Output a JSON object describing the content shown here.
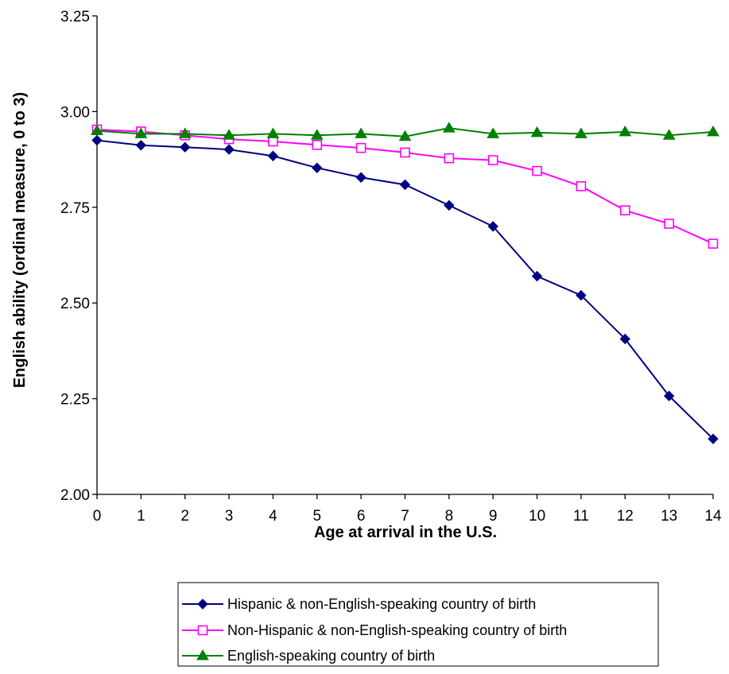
{
  "chart_data": {
    "type": "line",
    "title": "",
    "xlabel": "Age at arrival in the U.S.",
    "ylabel": "English ability (ordinal measure, 0 to 3)",
    "x": [
      0,
      1,
      2,
      3,
      4,
      5,
      6,
      7,
      8,
      9,
      10,
      11,
      12,
      13,
      14
    ],
    "xticks": [
      "0",
      "1",
      "2",
      "3",
      "4",
      "5",
      "6",
      "7",
      "8",
      "9",
      "10",
      "11",
      "12",
      "13",
      "14"
    ],
    "ylim": [
      2.0,
      3.25
    ],
    "yticks": [
      "2.00",
      "2.25",
      "2.50",
      "2.75",
      "3.00",
      "3.25"
    ],
    "ytick_values": [
      2.0,
      2.25,
      2.5,
      2.75,
      3.0,
      3.25
    ],
    "grid": false,
    "legend_position": "bottom-center",
    "series": [
      {
        "name": "Hispanic & non-English-speaking country of birth",
        "color": "#000080",
        "marker": "diamond",
        "values": [
          2.925,
          2.912,
          2.907,
          2.901,
          2.884,
          2.853,
          2.828,
          2.809,
          2.755,
          2.7,
          2.57,
          2.52,
          2.406,
          2.257,
          2.145
        ]
      },
      {
        "name": "Non-Hispanic & non-English-speaking country of birth",
        "color": "#ff00ff",
        "marker": "square-open",
        "values": [
          2.953,
          2.948,
          2.938,
          2.928,
          2.922,
          2.913,
          2.905,
          2.893,
          2.878,
          2.873,
          2.845,
          2.805,
          2.742,
          2.707,
          2.655
        ]
      },
      {
        "name": "English-speaking country of birth",
        "color": "#008000",
        "marker": "triangle",
        "values": [
          2.95,
          2.942,
          2.942,
          2.938,
          2.942,
          2.938,
          2.942,
          2.935,
          2.957,
          2.942,
          2.945,
          2.942,
          2.947,
          2.938,
          2.947
        ]
      }
    ]
  }
}
